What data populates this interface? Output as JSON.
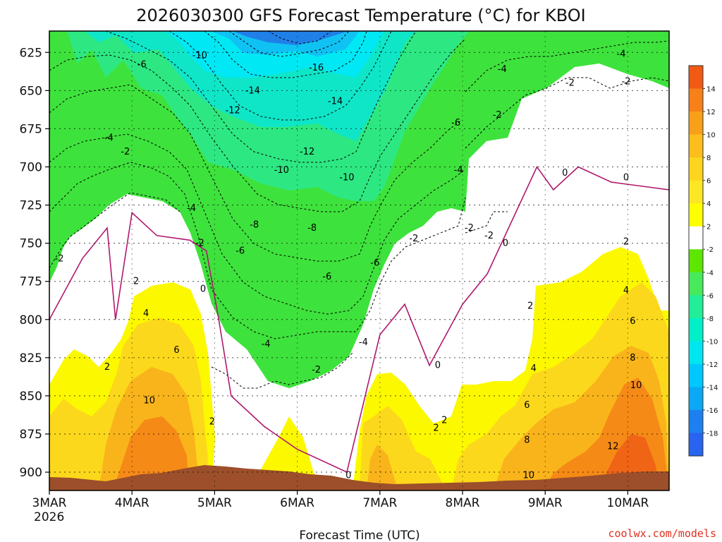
{
  "chart_data": {
    "type": "heatmap",
    "title": "2026030300 GFS Forecast Temperature (°C) for KBOI",
    "xlabel": "Forecast Time (UTC)",
    "ylabel": "",
    "x_ticks": [
      "3MAR",
      "4MAR",
      "5MAR",
      "6MAR",
      "7MAR",
      "8MAR",
      "9MAR",
      "10MAR"
    ],
    "x_year": "2026",
    "x_range_days": [
      0,
      7.5
    ],
    "y_ticks": [
      625,
      650,
      675,
      700,
      725,
      750,
      775,
      800,
      825,
      850,
      875,
      900
    ],
    "y_unit": "hPa",
    "ylim": [
      611,
      912
    ],
    "y_inverted": true,
    "contour_interval": 2,
    "colorbar": {
      "labels": [
        "14",
        "12",
        "10",
        "8",
        "6",
        "4",
        "2",
        "-2",
        "-4",
        "-6",
        "-8",
        "-10",
        "-12",
        "-14",
        "-16",
        "-18"
      ],
      "colors": [
        "#f05a14",
        "#f78018",
        "#f9a019",
        "#fbbe1c",
        "#fdd51e",
        "#fde624",
        "#ffff00",
        "#ffffff",
        "#5ce600",
        "#46ea5a",
        "#22ee97",
        "#00f0c8",
        "#00e6f0",
        "#00c8ff",
        "#0aa8f5",
        "#1e80f0",
        "#2864f0"
      ]
    },
    "freezing_level_hpa": [
      [
        0,
        800
      ],
      [
        0.4,
        760
      ],
      [
        0.7,
        740
      ],
      [
        0.8,
        800
      ],
      [
        1.0,
        730
      ],
      [
        1.3,
        745
      ],
      [
        1.7,
        748
      ],
      [
        1.9,
        755
      ],
      [
        2.05,
        800
      ],
      [
        2.2,
        850
      ],
      [
        2.6,
        870
      ],
      [
        3.0,
        885
      ],
      [
        3.6,
        900
      ],
      [
        4.0,
        810
      ],
      [
        4.3,
        790
      ],
      [
        4.6,
        830
      ],
      [
        5.0,
        790
      ],
      [
        5.3,
        770
      ],
      [
        5.9,
        700
      ],
      [
        6.1,
        715
      ],
      [
        6.4,
        700
      ],
      [
        6.8,
        710
      ],
      [
        7.5,
        715
      ]
    ],
    "series": [
      {
        "name": "freezing level (0°C)",
        "values": [
          800,
          760,
          740,
          800,
          730,
          745,
          748,
          755,
          800,
          850,
          870,
          885,
          900,
          810,
          790,
          830,
          790,
          770,
          700,
          715,
          700,
          710,
          715
        ]
      }
    ],
    "surface_pressure_hpa": [
      [
        0,
        906
      ],
      [
        0.5,
        908
      ],
      [
        1.0,
        906
      ],
      [
        1.5,
        903
      ],
      [
        1.9,
        898
      ],
      [
        2.2,
        899
      ],
      [
        2.6,
        904
      ],
      [
        3.0,
        906
      ],
      [
        3.5,
        905
      ],
      [
        4.0,
        908
      ],
      [
        4.5,
        910
      ],
      [
        5.0,
        909
      ],
      [
        5.5,
        907
      ],
      [
        6.0,
        907
      ],
      [
        6.5,
        904
      ],
      [
        7.0,
        902
      ],
      [
        7.5,
        901
      ]
    ],
    "isotherm_labels": [
      {
        "label": "-2",
        "day": 0.12,
        "hpa": 760
      },
      {
        "label": "-4",
        "day": 0.72,
        "hpa": 681
      },
      {
        "label": "-6",
        "day": 1.12,
        "hpa": 633
      },
      {
        "label": "-10",
        "day": 1.82,
        "hpa": 627
      },
      {
        "label": "-2",
        "day": 0.92,
        "hpa": 690
      },
      {
        "label": "-4",
        "day": 1.72,
        "hpa": 727
      },
      {
        "label": "-2",
        "day": 1.82,
        "hpa": 750
      },
      {
        "label": "2",
        "day": 1.05,
        "hpa": 775
      },
      {
        "label": "0",
        "day": 1.86,
        "hpa": 780
      },
      {
        "label": "4",
        "day": 1.17,
        "hpa": 796
      },
      {
        "label": "6",
        "day": 1.54,
        "hpa": 820
      },
      {
        "label": "2",
        "day": 0.7,
        "hpa": 831
      },
      {
        "label": "10",
        "day": 1.21,
        "hpa": 853
      },
      {
        "label": "2",
        "day": 1.97,
        "hpa": 867
      },
      {
        "label": "-14",
        "day": 2.46,
        "hpa": 650
      },
      {
        "label": "-16",
        "day": 3.23,
        "hpa": 635
      },
      {
        "label": "-14",
        "day": 3.46,
        "hpa": 657
      },
      {
        "label": "-12",
        "day": 2.22,
        "hpa": 663
      },
      {
        "label": "-12",
        "day": 3.12,
        "hpa": 690
      },
      {
        "label": "-10",
        "day": 2.81,
        "hpa": 702
      },
      {
        "label": "-10",
        "day": 3.6,
        "hpa": 707
      },
      {
        "label": "-8",
        "day": 2.48,
        "hpa": 738
      },
      {
        "label": "-8",
        "day": 3.18,
        "hpa": 740
      },
      {
        "label": "-6",
        "day": 2.31,
        "hpa": 755
      },
      {
        "label": "-6",
        "day": 3.36,
        "hpa": 772
      },
      {
        "label": "-6",
        "day": 3.94,
        "hpa": 763
      },
      {
        "label": "-4",
        "day": 2.62,
        "hpa": 816
      },
      {
        "label": "-2",
        "day": 3.23,
        "hpa": 833
      },
      {
        "label": "-4",
        "day": 3.8,
        "hpa": 815
      },
      {
        "label": "0",
        "day": 3.62,
        "hpa": 902
      },
      {
        "label": "-2",
        "day": 4.41,
        "hpa": 747
      },
      {
        "label": "0",
        "day": 4.7,
        "hpa": 830
      },
      {
        "label": "2",
        "day": 4.68,
        "hpa": 871
      },
      {
        "label": "-6",
        "day": 4.92,
        "hpa": 671
      },
      {
        "label": "-4",
        "day": 4.95,
        "hpa": 702
      },
      {
        "label": "-2",
        "day": 5.08,
        "hpa": 740
      },
      {
        "label": "-4",
        "day": 5.48,
        "hpa": 636
      },
      {
        "label": "-2",
        "day": 5.42,
        "hpa": 666
      },
      {
        "label": "-2",
        "day": 5.32,
        "hpa": 745
      },
      {
        "label": "0",
        "day": 5.52,
        "hpa": 750
      },
      {
        "label": "-2",
        "day": 6.3,
        "hpa": 645
      },
      {
        "label": "-4",
        "day": 6.92,
        "hpa": 626
      },
      {
        "label": "-2",
        "day": 6.98,
        "hpa": 644
      },
      {
        "label": "0",
        "day": 6.24,
        "hpa": 704
      },
      {
        "label": "0",
        "day": 6.98,
        "hpa": 707
      },
      {
        "label": "2",
        "day": 6.98,
        "hpa": 749
      },
      {
        "label": "2",
        "day": 5.82,
        "hpa": 791
      },
      {
        "label": "4",
        "day": 6.98,
        "hpa": 781
      },
      {
        "label": "6",
        "day": 7.06,
        "hpa": 801
      },
      {
        "label": "8",
        "day": 7.06,
        "hpa": 825
      },
      {
        "label": "10",
        "day": 7.1,
        "hpa": 843
      },
      {
        "label": "4",
        "day": 5.86,
        "hpa": 832
      },
      {
        "label": "6",
        "day": 5.78,
        "hpa": 856
      },
      {
        "label": "8",
        "day": 5.78,
        "hpa": 879
      },
      {
        "label": "10",
        "day": 5.8,
        "hpa": 902
      },
      {
        "label": "12",
        "day": 6.82,
        "hpa": 883
      },
      {
        "label": "2",
        "day": 4.78,
        "hpa": 866
      }
    ]
  },
  "credit": "coolwx.com/models"
}
